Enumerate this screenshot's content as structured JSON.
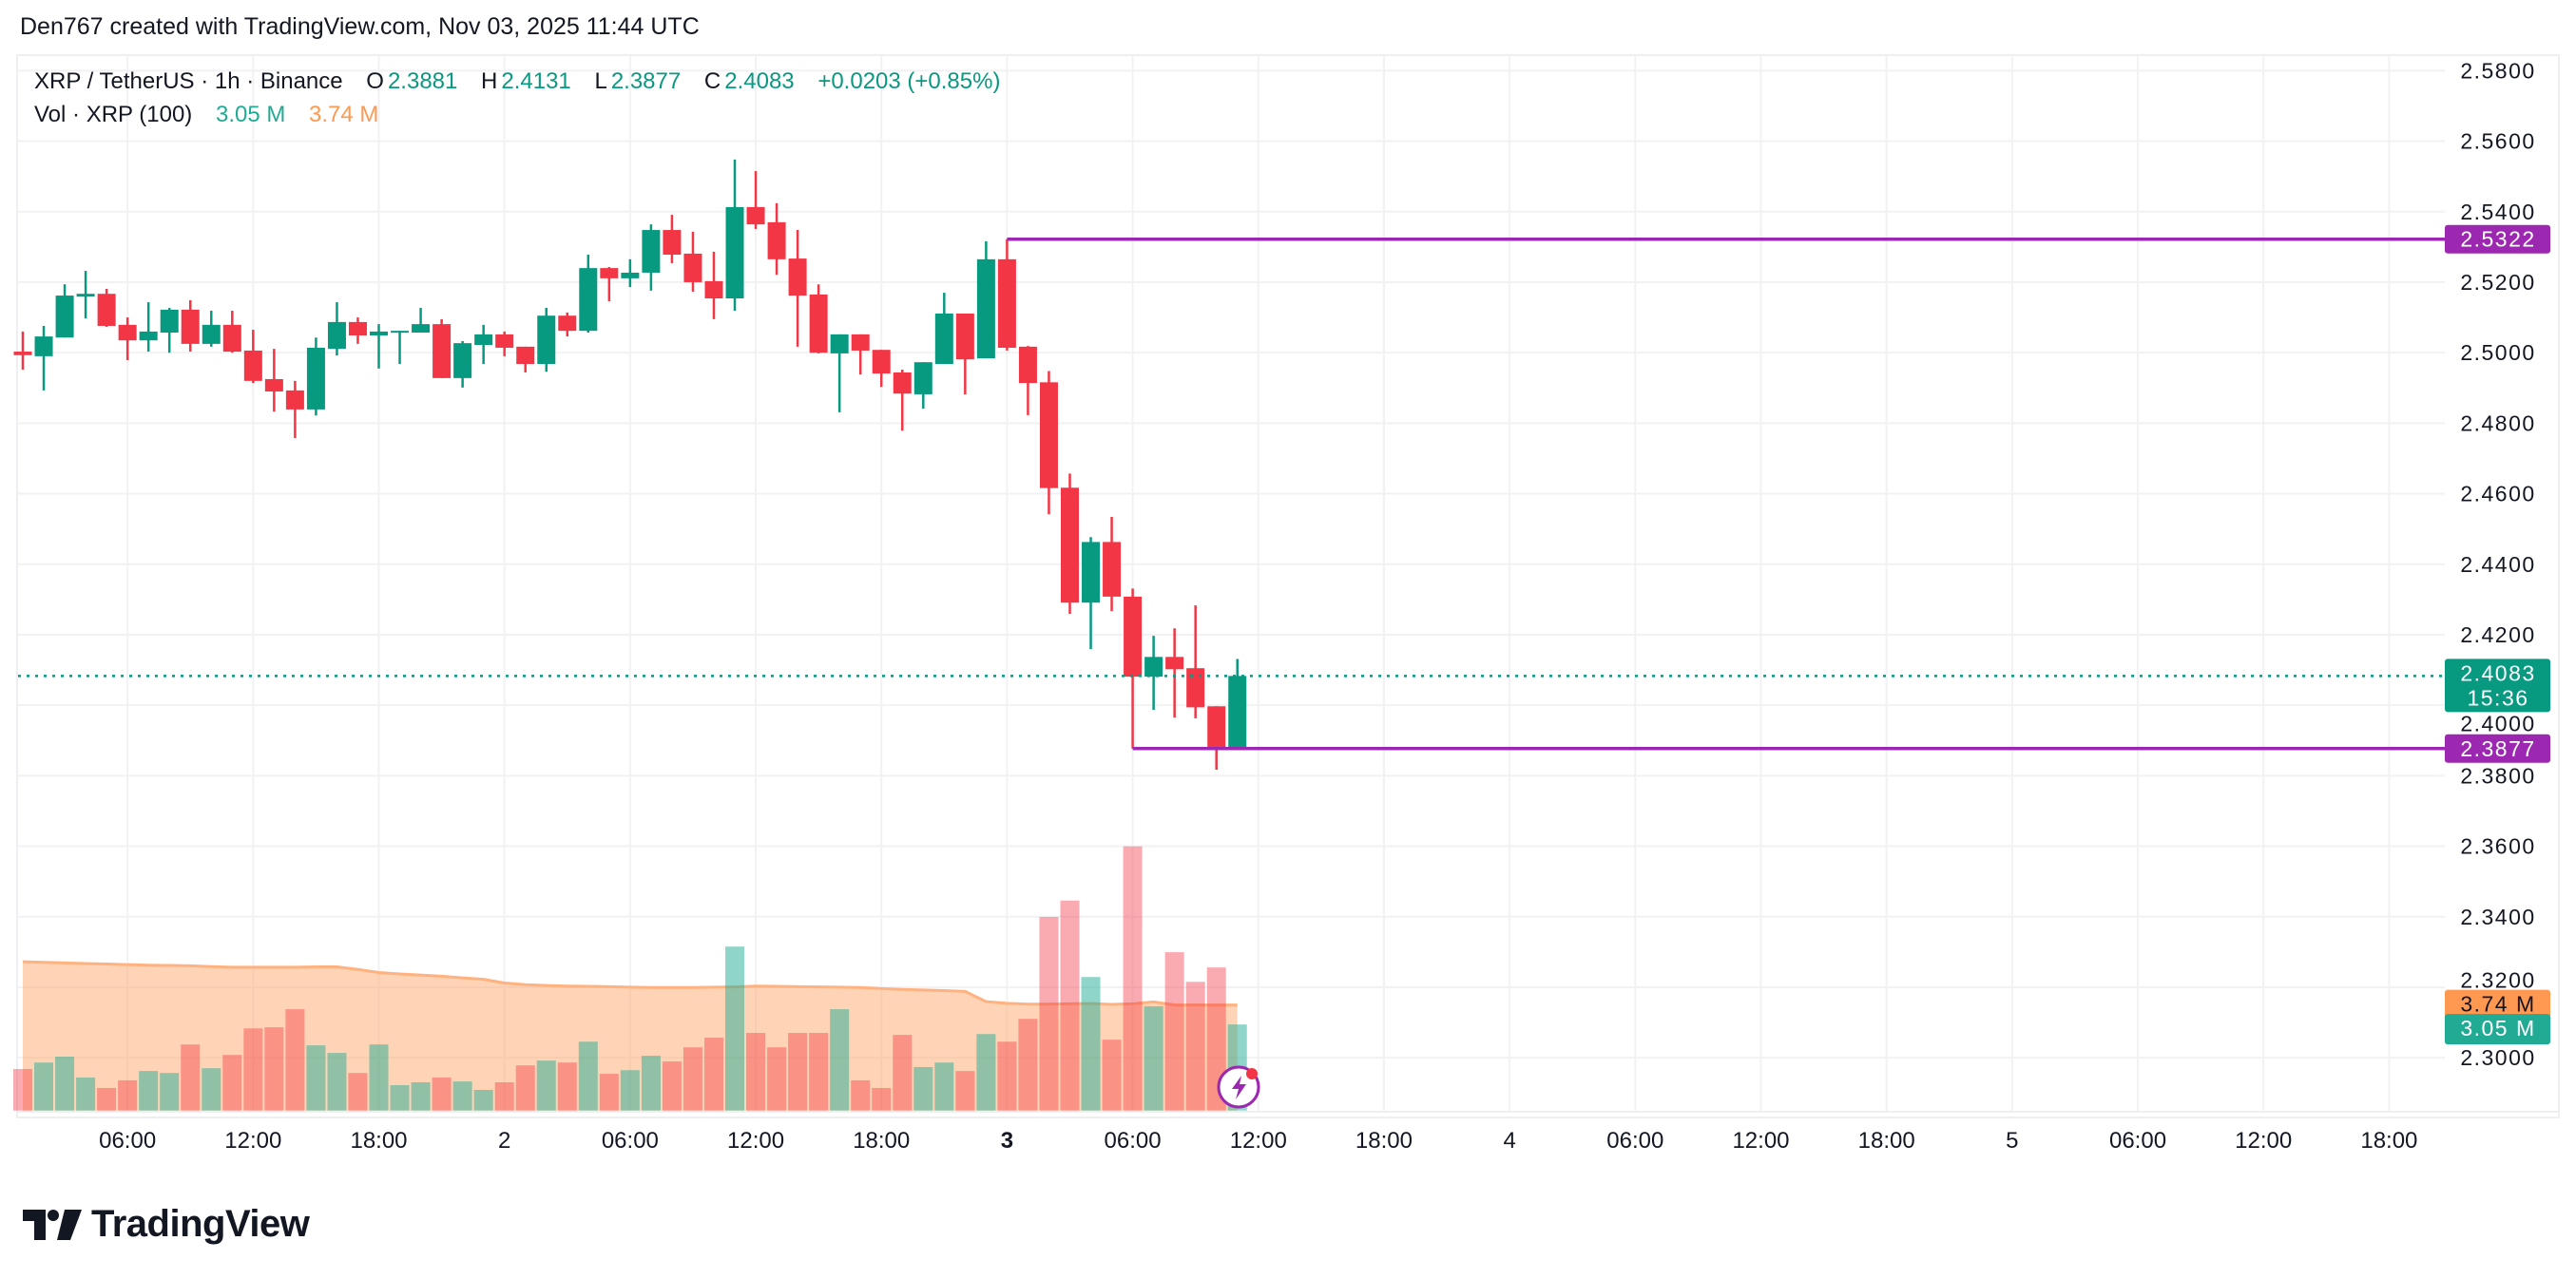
{
  "header": {
    "attribution": "Den767 created with TradingView.com, Nov 03, 2025 11:44 UTC"
  },
  "legend": {
    "symbol": "XRP / TetherUS · 1h · Binance",
    "o_label": "O",
    "o_value": "2.3881",
    "h_label": "H",
    "h_value": "2.4131",
    "l_label": "L",
    "l_value": "2.3877",
    "c_label": "C",
    "c_value": "2.4083",
    "change": "+0.0203 (+0.85%)",
    "vol_label": "Vol · XRP (100)",
    "vol_value": "3.05 M",
    "vol_ma_value": "3.74 M"
  },
  "price_axis": {
    "high_line_label": "2.5322",
    "low_line_label": "2.3877",
    "last_price_label": "2.4083",
    "countdown": "15:36",
    "vol_ma_label": "3.74 M",
    "vol_label": "3.05 M"
  },
  "logo": {
    "text": "TradingView"
  },
  "colors": {
    "up": "#089981",
    "down": "#f23645",
    "level_line": "#9c27b0",
    "vol_ma": "#ff9850",
    "vol_up": "#22ab94"
  },
  "chart_data": {
    "type": "candlestick",
    "symbol": "XRP / TetherUS",
    "interval": "1h",
    "ylim": [
      2.28,
      2.585
    ],
    "y_ticks": [
      "2.5800",
      "2.5600",
      "2.5400",
      "2.5200",
      "2.5000",
      "2.4800",
      "2.4600",
      "2.4400",
      "2.4200",
      "2.4000",
      "2.3800",
      "2.3600",
      "2.3400",
      "2.3200",
      "2.3000"
    ],
    "x_ticks": [
      {
        "label": "06:00",
        "time": "2025-11-01T06:00"
      },
      {
        "label": "12:00",
        "time": "2025-11-01T12:00"
      },
      {
        "label": "18:00",
        "time": "2025-11-01T18:00"
      },
      {
        "label": "2",
        "time": "2025-11-02T00:00"
      },
      {
        "label": "06:00",
        "time": "2025-11-02T06:00"
      },
      {
        "label": "12:00",
        "time": "2025-11-02T12:00"
      },
      {
        "label": "18:00",
        "time": "2025-11-02T18:00"
      },
      {
        "label": "3",
        "time": "2025-11-03T00:00"
      },
      {
        "label": "06:00",
        "time": "2025-11-03T06:00"
      },
      {
        "label": "12:00",
        "time": "2025-11-03T12:00"
      },
      {
        "label": "18:00",
        "time": "2025-11-03T18:00"
      },
      {
        "label": "4",
        "time": "2025-11-04T00:00"
      },
      {
        "label": "06:00",
        "time": "2025-11-04T06:00"
      },
      {
        "label": "12:00",
        "time": "2025-11-04T12:00"
      },
      {
        "label": "18:00",
        "time": "2025-11-04T18:00"
      },
      {
        "label": "5",
        "time": "2025-11-05T00:00"
      },
      {
        "label": "06:00",
        "time": "2025-11-05T06:00"
      },
      {
        "label": "12:00",
        "time": "2025-11-05T12:00"
      },
      {
        "label": "18:00",
        "time": "2025-11-05T18:00"
      }
    ],
    "x": [
      "2025-11-01T01:00",
      "2025-11-01T02:00",
      "2025-11-01T03:00",
      "2025-11-01T04:00",
      "2025-11-01T05:00",
      "2025-11-01T06:00",
      "2025-11-01T07:00",
      "2025-11-01T08:00",
      "2025-11-01T09:00",
      "2025-11-01T10:00",
      "2025-11-01T11:00",
      "2025-11-01T12:00",
      "2025-11-01T13:00",
      "2025-11-01T14:00",
      "2025-11-01T15:00",
      "2025-11-01T16:00",
      "2025-11-01T17:00",
      "2025-11-01T18:00",
      "2025-11-01T19:00",
      "2025-11-01T20:00",
      "2025-11-01T21:00",
      "2025-11-01T22:00",
      "2025-11-01T23:00",
      "2025-11-02T00:00",
      "2025-11-02T01:00",
      "2025-11-02T02:00",
      "2025-11-02T03:00",
      "2025-11-02T04:00",
      "2025-11-02T05:00",
      "2025-11-02T06:00",
      "2025-11-02T07:00",
      "2025-11-02T08:00",
      "2025-11-02T09:00",
      "2025-11-02T10:00",
      "2025-11-02T11:00",
      "2025-11-02T12:00",
      "2025-11-02T13:00",
      "2025-11-02T14:00",
      "2025-11-02T15:00",
      "2025-11-02T16:00",
      "2025-11-02T17:00",
      "2025-11-02T18:00",
      "2025-11-02T19:00",
      "2025-11-02T20:00",
      "2025-11-02T21:00",
      "2025-11-02T22:00",
      "2025-11-02T23:00",
      "2025-11-03T00:00",
      "2025-11-03T01:00",
      "2025-11-03T02:00",
      "2025-11-03T03:00",
      "2025-11-03T04:00",
      "2025-11-03T05:00",
      "2025-11-03T06:00",
      "2025-11-03T07:00",
      "2025-11-03T08:00",
      "2025-11-03T09:00",
      "2025-11-03T10:00",
      "2025-11-03T11:00"
    ],
    "open": [
      2.5003,
      2.499,
      2.5043,
      2.5159,
      2.5167,
      2.5079,
      2.5035,
      2.5057,
      2.5122,
      2.5025,
      2.5079,
      2.5006,
      2.4925,
      2.4893,
      2.4839,
      2.5011,
      2.5087,
      2.5049,
      2.5057,
      2.5057,
      2.5081,
      2.4928,
      2.5022,
      2.5052,
      2.5017,
      2.4968,
      2.5105,
      2.5062,
      2.524,
      2.5211,
      2.5227,
      2.5348,
      2.5281,
      2.5203,
      2.5154,
      2.5413,
      2.537,
      2.5267,
      2.5165,
      2.4998,
      2.5052,
      2.5008,
      2.4944,
      2.4882,
      2.4968,
      2.5111,
      2.4984,
      2.5265,
      2.5017,
      2.4916,
      2.4617,
      2.4291,
      2.4463,
      2.4308,
      2.4081,
      2.4137,
      2.4105,
      2.3997,
      2.3881
    ],
    "high": [
      2.506,
      2.5076,
      2.5194,
      2.5232,
      2.5181,
      2.51,
      2.5143,
      2.5127,
      2.5149,
      2.5119,
      2.5119,
      2.5065,
      2.5011,
      2.492,
      2.5043,
      2.5143,
      2.51,
      2.5081,
      2.5062,
      2.5127,
      2.5095,
      2.5033,
      2.5079,
      2.506,
      2.5017,
      2.5127,
      2.5114,
      2.5278,
      2.5243,
      2.5265,
      2.5364,
      2.5391,
      2.5343,
      2.5286,
      2.5548,
      2.5515,
      2.5424,
      2.5348,
      2.5194,
      2.5052,
      2.5052,
      2.5008,
      2.4952,
      2.4973,
      2.517,
      2.5111,
      2.5316,
      2.5322,
      2.5019,
      2.4948,
      2.4657,
      2.4477,
      2.4534,
      2.4331,
      2.4197,
      2.4218,
      2.4283,
      2.3997,
      2.4131
    ],
    "low": [
      2.4952,
      2.4893,
      2.5043,
      2.5097,
      2.5073,
      2.4979,
      2.5003,
      2.5,
      2.5003,
      2.5017,
      2.5,
      2.4914,
      2.4833,
      2.4758,
      2.4822,
      2.4992,
      2.5025,
      2.4955,
      2.4968,
      2.5057,
      2.4928,
      2.4901,
      2.4968,
      2.499,
      2.4944,
      2.4946,
      2.5046,
      2.5057,
      2.5146,
      2.5186,
      2.5176,
      2.5254,
      2.5173,
      2.5095,
      2.5119,
      2.5351,
      2.5221,
      2.5017,
      2.4998,
      2.4831,
      2.4938,
      2.4903,
      2.4779,
      2.4841,
      2.4968,
      2.4882,
      2.4984,
      2.5006,
      2.4823,
      2.4542,
      2.4259,
      2.4159,
      2.4267,
      2.3877,
      2.3987,
      2.3965,
      2.3963,
      2.3817,
      2.3877
    ],
    "close": [
      2.4993,
      2.5046,
      2.5162,
      2.5167,
      2.5076,
      2.5035,
      2.506,
      2.5122,
      2.5025,
      2.5079,
      2.5003,
      2.492,
      2.489,
      2.4839,
      2.5014,
      2.5087,
      2.5049,
      2.506,
      2.5062,
      2.5081,
      2.4928,
      2.5027,
      2.5052,
      2.5014,
      2.4968,
      2.5105,
      2.5062,
      2.524,
      2.5211,
      2.5227,
      2.5348,
      2.5278,
      2.52,
      2.5154,
      2.5413,
      2.5364,
      2.5265,
      2.5162,
      2.5,
      2.5052,
      2.5006,
      2.4941,
      2.4884,
      2.4973,
      2.5111,
      2.4981,
      2.5265,
      2.5014,
      2.4914,
      2.4616,
      2.4291,
      2.4463,
      2.4308,
      2.4081,
      2.4137,
      2.4102,
      2.3994,
      2.388,
      2.4083
    ],
    "volume_unit": "M",
    "volume": [
      1.47,
      1.7,
      1.91,
      1.17,
      0.8,
      1.07,
      1.4,
      1.33,
      2.34,
      1.5,
      1.97,
      2.91,
      2.95,
      3.59,
      2.31,
      2.04,
      1.33,
      2.34,
      0.9,
      1.0,
      1.17,
      1.03,
      0.73,
      1.0,
      1.6,
      1.77,
      1.7,
      2.44,
      1.3,
      1.43,
      1.94,
      1.74,
      2.24,
      2.58,
      5.81,
      2.75,
      2.24,
      2.75,
      2.75,
      3.59,
      1.07,
      0.8,
      2.68,
      1.54,
      1.7,
      1.4,
      2.71,
      2.44,
      3.25,
      6.86,
      7.44,
      4.73,
      2.51,
      9.36,
      3.69,
      5.61,
      4.56,
      5.07,
      3.05
    ],
    "volume_ma": [
      5.27,
      5.25,
      5.23,
      5.21,
      5.19,
      5.17,
      5.15,
      5.14,
      5.13,
      5.1,
      5.08,
      5.08,
      5.08,
      5.08,
      5.09,
      5.09,
      5.0,
      4.89,
      4.84,
      4.8,
      4.76,
      4.7,
      4.65,
      4.52,
      4.46,
      4.43,
      4.41,
      4.4,
      4.39,
      4.37,
      4.36,
      4.36,
      4.36,
      4.37,
      4.38,
      4.41,
      4.4,
      4.39,
      4.38,
      4.37,
      4.36,
      4.32,
      4.29,
      4.27,
      4.25,
      4.22,
      3.86,
      3.8,
      3.77,
      3.77,
      3.78,
      3.79,
      3.76,
      3.78,
      3.85,
      3.74,
      3.74,
      3.74,
      3.74
    ],
    "levels": [
      {
        "price": 2.5322,
        "from": "2025-11-03T00:00"
      },
      {
        "price": 2.3877,
        "from": "2025-11-03T06:00"
      }
    ],
    "last_price": 2.4083,
    "grid": true
  }
}
